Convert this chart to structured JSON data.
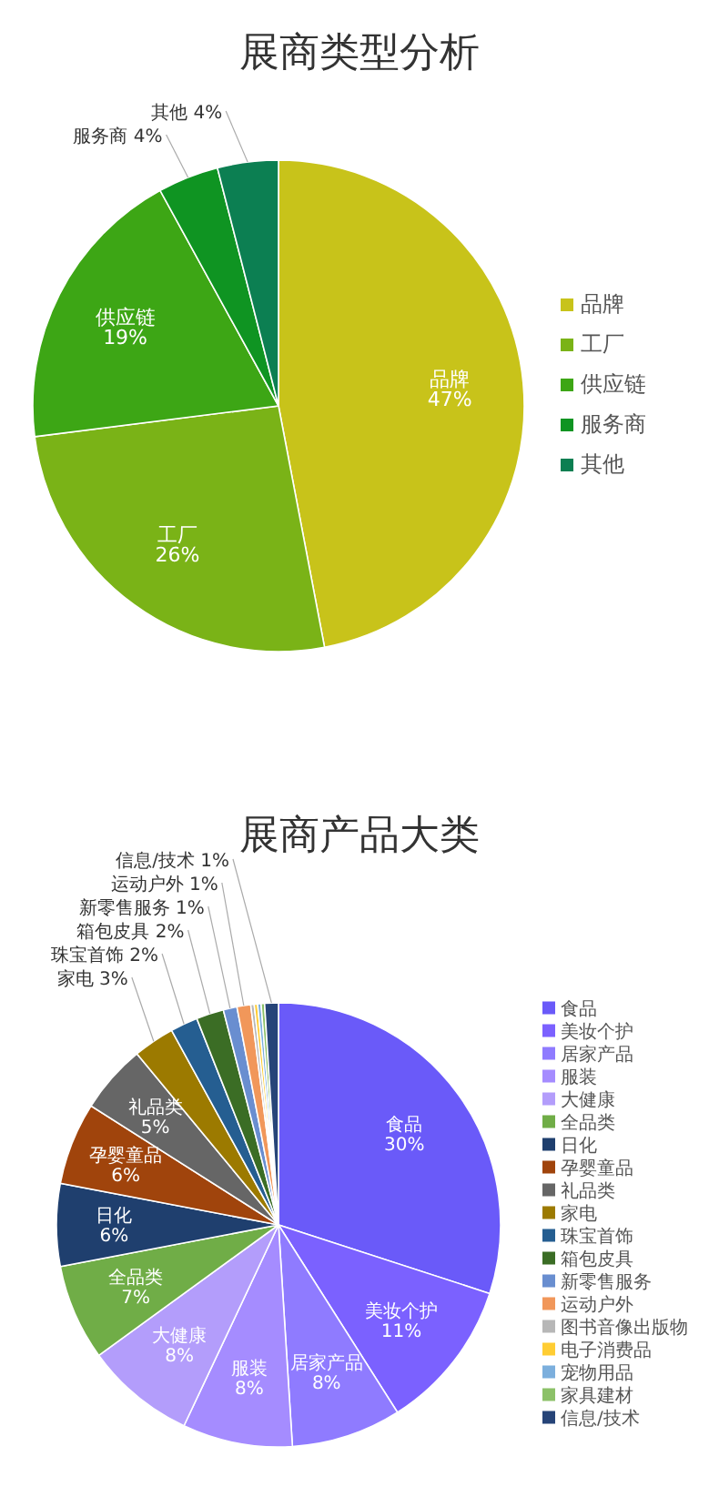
{
  "chart_data": [
    {
      "type": "pie",
      "title": "展商类型分析",
      "categories": [
        "品牌",
        "工厂",
        "供应链",
        "服务商",
        "其他"
      ],
      "values": [
        47,
        26,
        19,
        4,
        4
      ],
      "colors": [
        "#c8c31a",
        "#7ab317",
        "#3da615",
        "#0f9422",
        "#0c7f52"
      ],
      "value_labels": [
        "47%",
        "26%",
        "19%",
        "4%",
        "4%"
      ],
      "legend": "right"
    },
    {
      "type": "pie",
      "title": "展商产品大类",
      "categories": [
        "食品",
        "美妆个护",
        "居家产品",
        "服装",
        "大健康",
        "全品类",
        "日化",
        "孕婴童品",
        "礼品类",
        "家电",
        "珠宝首饰",
        "箱包皮具",
        "新零售服务",
        "运动户外",
        "图书音像出版物",
        "电子消费品",
        "宠物用品",
        "家具建材",
        "信息/技术"
      ],
      "values": [
        30,
        11,
        8,
        8,
        8,
        7,
        6,
        6,
        5,
        3,
        2,
        2,
        1,
        1,
        0.25,
        0.25,
        0.25,
        0.25,
        1
      ],
      "colors": [
        "#6a5af9",
        "#7b61ff",
        "#8f7bff",
        "#a58cff",
        "#b39dfb",
        "#70ad47",
        "#1f3f6e",
        "#a0440c",
        "#666666",
        "#9c7a00",
        "#255e91",
        "#3b6d25",
        "#698ed0",
        "#f1975a",
        "#b7b7b7",
        "#ffcd33",
        "#7cafdd",
        "#8cc168",
        "#264478"
      ],
      "value_labels": [
        "30%",
        "11%",
        "8%",
        "8%",
        "8%",
        "7%",
        "6%",
        "6%",
        "5%",
        "3%",
        "2%",
        "2%",
        "1%",
        "1%",
        null,
        null,
        null,
        null,
        "1%"
      ],
      "legend": "right"
    }
  ]
}
